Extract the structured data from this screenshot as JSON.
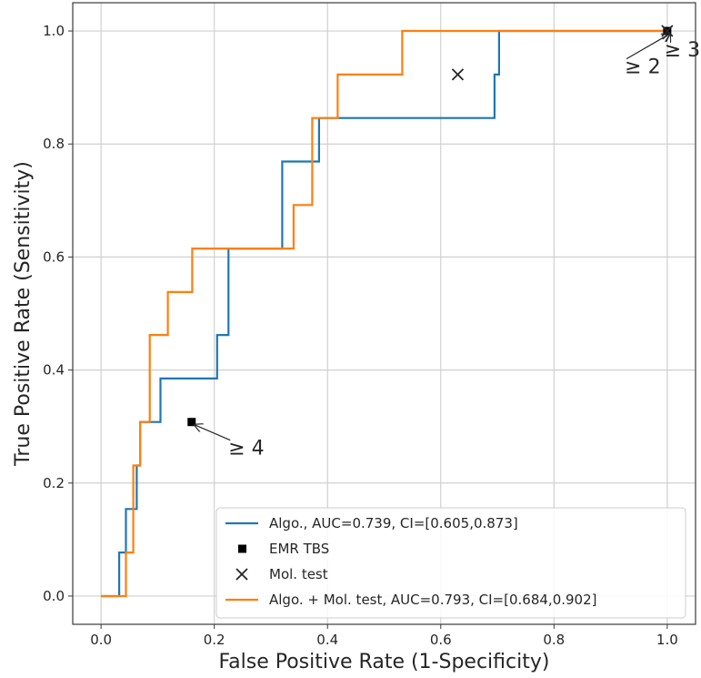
{
  "chart_data": {
    "type": "line",
    "title": "",
    "xlabel": "False Positive Rate (1-Specificity)",
    "ylabel": "True Positive Rate (Sensitivity)",
    "xlim": [
      -0.05,
      1.05
    ],
    "ylim": [
      -0.05,
      1.05
    ],
    "grid": true,
    "xticks": [
      0.0,
      0.2,
      0.4,
      0.6,
      0.8,
      1.0
    ],
    "xtick_labels": [
      "0.0",
      "0.2",
      "0.4",
      "0.6",
      "0.8",
      "1.0"
    ],
    "yticks": [
      0.0,
      0.2,
      0.4,
      0.6,
      0.8,
      1.0
    ],
    "ytick_labels": [
      "0.0",
      "0.2",
      "0.4",
      "0.6",
      "0.8",
      "1.0"
    ],
    "legend_position": "bottom-right",
    "series": [
      {
        "name": "Algo., AUC=0.739, CI=[0.605,0.873]",
        "kind": "step-line",
        "color": "#1f77b4",
        "x": [
          0.0,
          0.032,
          0.032,
          0.044,
          0.044,
          0.063,
          0.063,
          0.069,
          0.069,
          0.075,
          0.075,
          0.105,
          0.105,
          0.205,
          0.205,
          0.225,
          0.225,
          0.32,
          0.32,
          0.36,
          0.36,
          0.385,
          0.385,
          0.695,
          0.695,
          0.703,
          0.703,
          1.0
        ],
        "y": [
          0.0,
          0.0,
          0.077,
          0.077,
          0.154,
          0.154,
          0.231,
          0.231,
          0.308,
          0.308,
          0.308,
          0.308,
          0.385,
          0.385,
          0.462,
          0.462,
          0.615,
          0.615,
          0.769,
          0.769,
          0.769,
          0.769,
          0.846,
          0.846,
          0.923,
          0.923,
          1.0,
          1.0
        ]
      },
      {
        "name": "EMR TBS",
        "kind": "square-marker",
        "color": "#000000",
        "x": [
          0.16,
          1.0
        ],
        "y": [
          0.308,
          1.0
        ]
      },
      {
        "name": "Mol. test",
        "kind": "x-marker",
        "color": "#262626",
        "x": [
          0.63,
          1.0
        ],
        "y": [
          0.923,
          1.0
        ]
      },
      {
        "name": "Algo. + Mol. test, AUC=0.793, CI=[0.684,0.902]",
        "kind": "step-line",
        "color": "#ff7f0e",
        "x": [
          0.0,
          0.044,
          0.044,
          0.057,
          0.057,
          0.069,
          0.069,
          0.086,
          0.086,
          0.118,
          0.118,
          0.161,
          0.161,
          0.34,
          0.34,
          0.373,
          0.373,
          0.418,
          0.418,
          0.532,
          0.532,
          1.0
        ],
        "y": [
          0.0,
          0.0,
          0.077,
          0.077,
          0.231,
          0.231,
          0.308,
          0.308,
          0.462,
          0.462,
          0.538,
          0.538,
          0.615,
          0.615,
          0.692,
          0.692,
          0.846,
          0.846,
          0.923,
          0.923,
          1.0,
          1.0
        ]
      }
    ],
    "annotations": [
      {
        "text": "≥ 4",
        "target_x": 0.16,
        "target_y": 0.308,
        "text_x": 0.225,
        "text_y": 0.25
      },
      {
        "text": "≥ 2",
        "target_x": 1.0,
        "target_y": 1.0,
        "text_x": 0.925,
        "text_y": 0.925
      },
      {
        "text": "≥ 3",
        "target_x": 1.0,
        "target_y": 1.0,
        "text_x": 0.995,
        "text_y": 0.955
      }
    ]
  }
}
